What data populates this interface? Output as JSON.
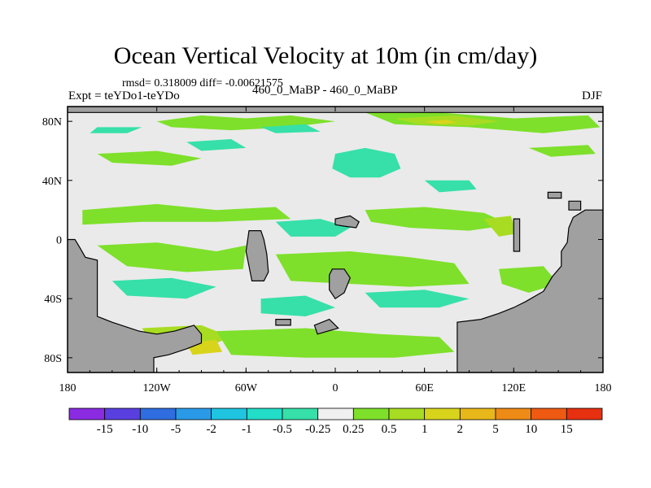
{
  "chart_data": {
    "type": "heatmap",
    "title": "Ocean Vertical Velocity at 10m (in cm/day)",
    "stats_line": "rmsd= 0.318009 diff= -0.00621575",
    "left_label": "Expt = teYDo1-teYDo",
    "center_label": "460_0_MaBP - 460_0_MaBP",
    "right_label": "DJF",
    "xlabel": "",
    "ylabel": "",
    "x_range": [
      -180,
      180
    ],
    "y_range": [
      -90,
      90
    ],
    "x_ticks": [
      {
        "value": -180,
        "label": "180"
      },
      {
        "value": -120,
        "label": "120W"
      },
      {
        "value": -60,
        "label": "60W"
      },
      {
        "value": 0,
        "label": "0"
      },
      {
        "value": 60,
        "label": "60E"
      },
      {
        "value": 120,
        "label": "120E"
      },
      {
        "value": 180,
        "label": "180"
      }
    ],
    "y_ticks": [
      {
        "value": 80,
        "label": "80N"
      },
      {
        "value": 40,
        "label": "40N"
      },
      {
        "value": 0,
        "label": "0"
      },
      {
        "value": -40,
        "label": "40S"
      },
      {
        "value": -80,
        "label": "80S"
      }
    ],
    "colorbar": {
      "labels": [
        "-15",
        "-10",
        "-5",
        "-2",
        "-1",
        "-0.5",
        "-0.25",
        "0.25",
        "0.5",
        "1",
        "2",
        "5",
        "10",
        "15"
      ],
      "colors": [
        "#8a2be2",
        "#5a3fe0",
        "#2f6de0",
        "#2a9ae8",
        "#1fc4e0",
        "#22ddc8",
        "#36e0a8",
        "#f0f0f0",
        "#7ee02a",
        "#a8dc22",
        "#d8d41c",
        "#e8b81a",
        "#ee8a16",
        "#ee5a12",
        "#e63010"
      ]
    },
    "land_color": "#a0a0a0",
    "ocean_neutral_color": "#eaeaea",
    "land": [
      {
        "name": "north-polar-land",
        "polygon": [
          [
            -180,
            90
          ],
          [
            180,
            90
          ],
          [
            180,
            86
          ],
          [
            -180,
            86
          ]
        ]
      },
      {
        "name": "western-continent",
        "polygon": [
          [
            -180,
            0
          ],
          [
            -175,
            0
          ],
          [
            -172,
            -5
          ],
          [
            -168,
            -12
          ],
          [
            -160,
            -14
          ],
          [
            -160,
            -52
          ],
          [
            -150,
            -56
          ],
          [
            -132,
            -62
          ],
          [
            -120,
            -64
          ],
          [
            -108,
            -62
          ],
          [
            -95,
            -58
          ],
          [
            -90,
            -64
          ],
          [
            -90,
            -70
          ],
          [
            -100,
            -74
          ],
          [
            -112,
            -78
          ],
          [
            -122,
            -80
          ],
          [
            -122,
            -90
          ],
          [
            -180,
            -90
          ]
        ]
      },
      {
        "name": "eastern-continent",
        "polygon": [
          [
            180,
            20
          ],
          [
            168,
            20
          ],
          [
            160,
            15
          ],
          [
            157,
            8
          ],
          [
            156,
            -2
          ],
          [
            152,
            -8
          ],
          [
            152,
            -18
          ],
          [
            146,
            -25
          ],
          [
            140,
            -35
          ],
          [
            128,
            -42
          ],
          [
            120,
            -46
          ],
          [
            110,
            -50
          ],
          [
            98,
            -54
          ],
          [
            82,
            -56
          ],
          [
            82,
            -90
          ],
          [
            180,
            -90
          ]
        ]
      },
      {
        "name": "island-a",
        "polygon": [
          [
            -58,
            6
          ],
          [
            -50,
            6
          ],
          [
            -48,
            0
          ],
          [
            -46,
            -10
          ],
          [
            -45,
            -22
          ],
          [
            -48,
            -28
          ],
          [
            -56,
            -28
          ],
          [
            -58,
            -18
          ],
          [
            -60,
            -8
          ]
        ]
      },
      {
        "name": "island-b",
        "polygon": [
          [
            -4,
            -24
          ],
          [
            -2,
            -20
          ],
          [
            6,
            -20
          ],
          [
            10,
            -26
          ],
          [
            6,
            -36
          ],
          [
            0,
            -40
          ],
          [
            -4,
            -34
          ]
        ]
      },
      {
        "name": "island-c",
        "polygon": [
          [
            0,
            14
          ],
          [
            10,
            16
          ],
          [
            16,
            12
          ],
          [
            14,
            8
          ],
          [
            6,
            9
          ],
          [
            0,
            10
          ]
        ]
      },
      {
        "name": "island-d",
        "polygon": [
          [
            -40,
            -54
          ],
          [
            -30,
            -54
          ],
          [
            -30,
            -58
          ],
          [
            -40,
            -58
          ]
        ]
      },
      {
        "name": "island-e",
        "polygon": [
          [
            -14,
            -58
          ],
          [
            -4,
            -54
          ],
          [
            2,
            -60
          ],
          [
            -12,
            -64
          ]
        ]
      },
      {
        "name": "island-f",
        "polygon": [
          [
            120,
            14
          ],
          [
            124,
            14
          ],
          [
            124,
            -8
          ],
          [
            120,
            -8
          ]
        ]
      },
      {
        "name": "island-g",
        "polygon": [
          [
            143,
            32
          ],
          [
            152,
            32
          ],
          [
            152,
            28
          ],
          [
            143,
            28
          ]
        ]
      },
      {
        "name": "island-h",
        "polygon": [
          [
            157,
            26
          ],
          [
            165,
            26
          ],
          [
            165,
            20
          ],
          [
            157,
            20
          ]
        ]
      }
    ],
    "fields": [
      {
        "level": "0.5",
        "polygon": [
          [
            -120,
            80
          ],
          [
            -90,
            84
          ],
          [
            -60,
            82
          ],
          [
            -30,
            84
          ],
          [
            0,
            80
          ],
          [
            -30,
            76
          ],
          [
            -70,
            74
          ],
          [
            -110,
            76
          ]
        ]
      },
      {
        "level": "0.5",
        "polygon": [
          [
            20,
            86
          ],
          [
            70,
            86
          ],
          [
            120,
            82
          ],
          [
            170,
            84
          ],
          [
            178,
            76
          ],
          [
            140,
            72
          ],
          [
            90,
            76
          ],
          [
            40,
            78
          ]
        ]
      },
      {
        "level": "1",
        "polygon": [
          [
            40,
            82
          ],
          [
            80,
            84
          ],
          [
            110,
            80
          ],
          [
            90,
            77
          ],
          [
            55,
            78
          ]
        ]
      },
      {
        "level": "2",
        "polygon": [
          [
            60,
            80
          ],
          [
            75,
            81
          ],
          [
            82,
            79
          ],
          [
            70,
            78
          ]
        ]
      },
      {
        "level": "-0.5",
        "polygon": [
          [
            -160,
            76
          ],
          [
            -130,
            76
          ],
          [
            -140,
            72
          ],
          [
            -165,
            72
          ]
        ]
      },
      {
        "level": "-0.5",
        "polygon": [
          [
            -50,
            76
          ],
          [
            -20,
            78
          ],
          [
            -10,
            73
          ],
          [
            -40,
            72
          ]
        ]
      },
      {
        "level": "-0.5",
        "polygon": [
          [
            0,
            58
          ],
          [
            20,
            62
          ],
          [
            40,
            58
          ],
          [
            44,
            48
          ],
          [
            30,
            42
          ],
          [
            10,
            42
          ],
          [
            -2,
            48
          ]
        ]
      },
      {
        "level": "0.5",
        "polygon": [
          [
            -160,
            58
          ],
          [
            -120,
            60
          ],
          [
            -90,
            55
          ],
          [
            -110,
            50
          ],
          [
            -150,
            52
          ]
        ]
      },
      {
        "level": "-0.5",
        "polygon": [
          [
            -100,
            66
          ],
          [
            -70,
            68
          ],
          [
            -60,
            62
          ],
          [
            -90,
            60
          ]
        ]
      },
      {
        "level": "0.5",
        "polygon": [
          [
            130,
            62
          ],
          [
            170,
            64
          ],
          [
            175,
            58
          ],
          [
            145,
            56
          ]
        ]
      },
      {
        "level": "-0.5",
        "polygon": [
          [
            60,
            40
          ],
          [
            90,
            40
          ],
          [
            95,
            34
          ],
          [
            70,
            32
          ]
        ]
      },
      {
        "level": "0.5",
        "polygon": [
          [
            -170,
            20
          ],
          [
            -120,
            24
          ],
          [
            -80,
            20
          ],
          [
            -40,
            22
          ],
          [
            -30,
            14
          ],
          [
            -80,
            12
          ],
          [
            -130,
            12
          ],
          [
            -170,
            10
          ]
        ]
      },
      {
        "level": "0.5",
        "polygon": [
          [
            20,
            20
          ],
          [
            60,
            22
          ],
          [
            100,
            18
          ],
          [
            118,
            10
          ],
          [
            90,
            6
          ],
          [
            50,
            8
          ],
          [
            24,
            12
          ]
        ]
      },
      {
        "level": "-0.5",
        "polygon": [
          [
            -40,
            12
          ],
          [
            -10,
            14
          ],
          [
            10,
            8
          ],
          [
            0,
            2
          ],
          [
            -30,
            2
          ]
        ]
      },
      {
        "level": "1",
        "polygon": [
          [
            100,
            14
          ],
          [
            118,
            16
          ],
          [
            122,
            4
          ],
          [
            110,
            2
          ]
        ]
      },
      {
        "level": "0.5",
        "polygon": [
          [
            -160,
            -4
          ],
          [
            -120,
            -2
          ],
          [
            -80,
            -8
          ],
          [
            -60,
            -4
          ],
          [
            -62,
            -20
          ],
          [
            -100,
            -22
          ],
          [
            -140,
            -18
          ]
        ]
      },
      {
        "level": "-0.5",
        "polygon": [
          [
            -150,
            -28
          ],
          [
            -110,
            -26
          ],
          [
            -80,
            -32
          ],
          [
            -100,
            -40
          ],
          [
            -140,
            -38
          ]
        ]
      },
      {
        "level": "0.5",
        "polygon": [
          [
            -40,
            -10
          ],
          [
            10,
            -8
          ],
          [
            50,
            -12
          ],
          [
            80,
            -16
          ],
          [
            90,
            -30
          ],
          [
            50,
            -32
          ],
          [
            10,
            -30
          ],
          [
            -30,
            -28
          ]
        ]
      },
      {
        "level": "-0.5",
        "polygon": [
          [
            20,
            -36
          ],
          [
            60,
            -34
          ],
          [
            90,
            -40
          ],
          [
            70,
            -46
          ],
          [
            30,
            -46
          ]
        ]
      },
      {
        "level": "1",
        "polygon": [
          [
            -130,
            -60
          ],
          [
            -90,
            -58
          ],
          [
            -70,
            -66
          ],
          [
            -90,
            -74
          ],
          [
            -120,
            -74
          ]
        ]
      },
      {
        "level": "0.5",
        "polygon": [
          [
            -80,
            -62
          ],
          [
            -20,
            -60
          ],
          [
            30,
            -64
          ],
          [
            70,
            -66
          ],
          [
            80,
            -76
          ],
          [
            40,
            -80
          ],
          [
            -20,
            -80
          ],
          [
            -70,
            -78
          ]
        ]
      },
      {
        "level": "2",
        "polygon": [
          [
            -100,
            -70
          ],
          [
            -80,
            -68
          ],
          [
            -76,
            -76
          ],
          [
            -96,
            -78
          ]
        ]
      },
      {
        "level": "-0.5",
        "polygon": [
          [
            -50,
            -40
          ],
          [
            -20,
            -38
          ],
          [
            0,
            -46
          ],
          [
            -20,
            -52
          ],
          [
            -50,
            -50
          ]
        ]
      },
      {
        "level": "0.5",
        "polygon": [
          [
            110,
            -20
          ],
          [
            140,
            -18
          ],
          [
            150,
            -30
          ],
          [
            130,
            -36
          ],
          [
            112,
            -30
          ]
        ]
      }
    ]
  }
}
